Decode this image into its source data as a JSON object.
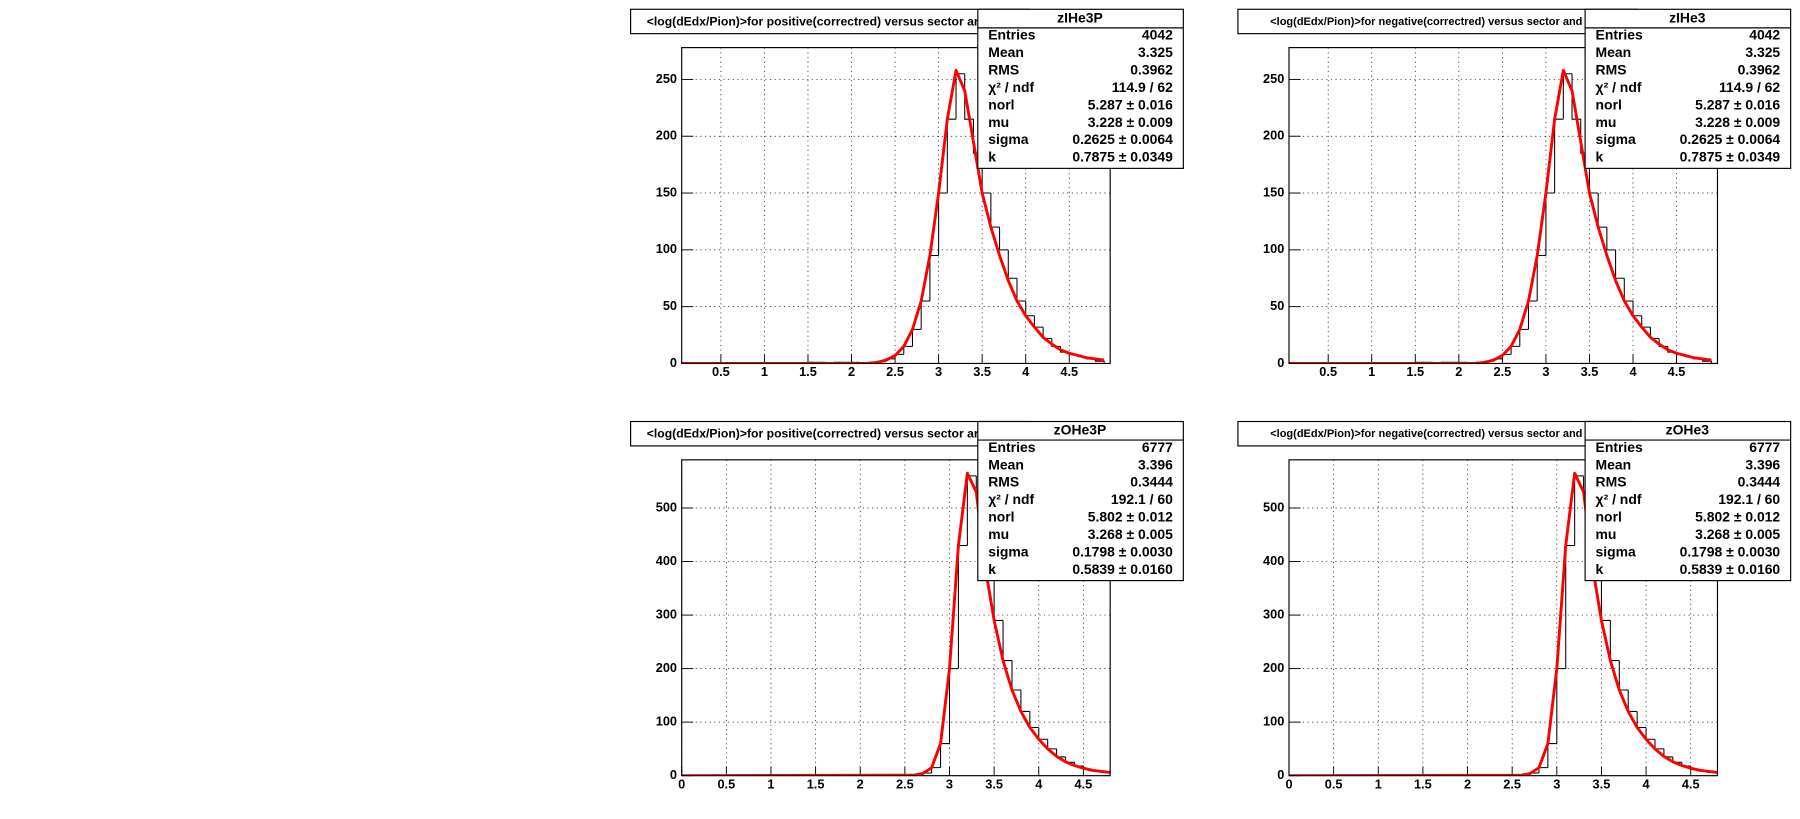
{
  "chart_data": [
    {
      "type": "histogram",
      "title": "<log(dEdx/Pion)>for positive(correctred) versus sector and row",
      "name": "zIHe3P",
      "stats": [
        [
          "Entries",
          "4042"
        ],
        [
          "Mean",
          "3.325"
        ],
        [
          "RMS",
          "0.3962"
        ],
        [
          "χ² / ndf",
          "114.9 / 62"
        ],
        [
          "norl",
          "5.287 ± 0.016"
        ],
        [
          "mu",
          "3.228 ± 0.009"
        ],
        [
          "sigma",
          "0.2625 ± 0.0064"
        ],
        [
          "k",
          "0.7875 ± 0.0349"
        ]
      ],
      "bins": [
        0,
        0.1,
        0.2,
        0.3,
        0.4,
        0.5,
        0.6,
        0.7,
        0.8,
        0.9,
        1,
        1.1,
        1.2,
        1.3,
        1.4,
        1.5,
        1.6,
        1.7,
        1.8,
        1.9,
        2,
        2.1,
        2.2,
        2.3,
        2.4,
        2.5,
        2.6,
        2.7,
        2.8,
        2.9,
        3,
        3.1,
        3.2,
        3.3,
        3.4,
        3.5,
        3.6,
        3.7,
        3.8,
        3.9,
        4,
        4.1,
        4.2,
        4.3,
        4.4,
        4.5,
        4.6,
        4.7,
        4.8,
        4.9
      ],
      "counts": [
        0,
        0,
        0,
        0,
        0,
        0,
        0,
        0,
        0,
        0,
        0,
        0,
        0,
        0,
        0,
        1,
        1,
        0,
        1,
        1,
        1,
        0,
        1,
        2,
        4,
        8,
        15,
        30,
        55,
        95,
        150,
        215,
        255,
        215,
        185,
        150,
        120,
        100,
        75,
        55,
        42,
        32,
        22,
        15,
        10,
        8,
        6,
        4,
        2
      ],
      "fit": {
        "color": "#ff0000",
        "x": [
          0.05,
          2.2,
          2.3,
          2.4,
          2.5,
          2.6,
          2.7,
          2.8,
          2.9,
          3,
          3.1,
          3.2,
          3.3,
          3.4,
          3.5,
          3.6,
          3.7,
          3.8,
          3.9,
          4,
          4.1,
          4.2,
          4.3,
          4.4,
          4.5,
          4.6,
          4.7,
          4.8,
          4.9
        ],
        "values": [
          0,
          0,
          1,
          3,
          7,
          15,
          30,
          55,
          95,
          150,
          215,
          258,
          240,
          195,
          150,
          120,
          95,
          73,
          55,
          42,
          32,
          23,
          17,
          12,
          9,
          7,
          5,
          4,
          3
        ]
      },
      "xlim": [
        0.05,
        4.97
      ],
      "ylim": [
        0,
        278
      ],
      "xticks": [
        0.5,
        1,
        1.5,
        2,
        2.5,
        3,
        3.5,
        4,
        4.5
      ],
      "yticks": [
        0,
        50,
        100,
        150,
        200,
        250
      ],
      "grid": true
    },
    {
      "type": "histogram",
      "title": "<log(dEdx/Pion)>for negative(correctred) versus sector and row",
      "name": "zIHe3",
      "stats": [
        [
          "Entries",
          "4042"
        ],
        [
          "Mean",
          "3.325"
        ],
        [
          "RMS",
          "0.3962"
        ],
        [
          "χ² / ndf",
          "114.9 / 62"
        ],
        [
          "norl",
          "5.287 ± 0.016"
        ],
        [
          "mu",
          "3.228 ± 0.009"
        ],
        [
          "sigma",
          "0.2625 ± 0.0064"
        ],
        [
          "k",
          "0.7875 ± 0.0349"
        ]
      ],
      "bins": [
        0,
        0.1,
        0.2,
        0.3,
        0.4,
        0.5,
        0.6,
        0.7,
        0.8,
        0.9,
        1,
        1.1,
        1.2,
        1.3,
        1.4,
        1.5,
        1.6,
        1.7,
        1.8,
        1.9,
        2,
        2.1,
        2.2,
        2.3,
        2.4,
        2.5,
        2.6,
        2.7,
        2.8,
        2.9,
        3,
        3.1,
        3.2,
        3.3,
        3.4,
        3.5,
        3.6,
        3.7,
        3.8,
        3.9,
        4,
        4.1,
        4.2,
        4.3,
        4.4,
        4.5,
        4.6,
        4.7,
        4.8,
        4.9
      ],
      "counts": [
        0,
        0,
        0,
        0,
        0,
        0,
        0,
        0,
        0,
        0,
        0,
        0,
        0,
        0,
        0,
        1,
        1,
        0,
        1,
        1,
        1,
        0,
        1,
        2,
        4,
        8,
        15,
        30,
        55,
        95,
        150,
        215,
        255,
        215,
        185,
        150,
        120,
        100,
        75,
        55,
        42,
        32,
        22,
        15,
        10,
        8,
        6,
        4,
        2
      ],
      "fit": {
        "color": "#ff0000",
        "x": [
          0.05,
          2.2,
          2.3,
          2.4,
          2.5,
          2.6,
          2.7,
          2.8,
          2.9,
          3,
          3.1,
          3.2,
          3.3,
          3.4,
          3.5,
          3.6,
          3.7,
          3.8,
          3.9,
          4,
          4.1,
          4.2,
          4.3,
          4.4,
          4.5,
          4.6,
          4.7,
          4.8,
          4.9
        ],
        "values": [
          0,
          0,
          1,
          3,
          7,
          15,
          30,
          55,
          95,
          150,
          215,
          258,
          240,
          195,
          150,
          120,
          95,
          73,
          55,
          42,
          32,
          23,
          17,
          12,
          9,
          7,
          5,
          4,
          3
        ]
      },
      "xlim": [
        0.05,
        4.97
      ],
      "ylim": [
        0,
        278
      ],
      "xticks": [
        0.5,
        1,
        1.5,
        2,
        2.5,
        3,
        3.5,
        4,
        4.5
      ],
      "yticks": [
        0,
        50,
        100,
        150,
        200,
        250
      ],
      "grid": true
    },
    {
      "type": "histogram",
      "title": "<log(dEdx/Pion)>for positive(correctred) versus sector and row",
      "name": "zOHe3P",
      "stats": [
        [
          "Entries",
          "6777"
        ],
        [
          "Mean",
          "3.396"
        ],
        [
          "RMS",
          "0.3444"
        ],
        [
          "χ² / ndf",
          "192.1 / 60"
        ],
        [
          "norl",
          "5.802 ± 0.012"
        ],
        [
          "mu",
          "3.268 ± 0.005"
        ],
        [
          "sigma",
          "0.1798 ± 0.0030"
        ],
        [
          "k",
          "0.5839 ± 0.0160"
        ]
      ],
      "bins": [
        0,
        0.1,
        0.2,
        0.3,
        0.4,
        0.5,
        0.6,
        0.7,
        0.8,
        0.9,
        1,
        1.1,
        1.2,
        1.3,
        1.4,
        1.5,
        1.6,
        1.7,
        1.8,
        1.9,
        2,
        2.1,
        2.2,
        2.3,
        2.4,
        2.5,
        2.6,
        2.7,
        2.8,
        2.9,
        3,
        3.1,
        3.2,
        3.3,
        3.4,
        3.5,
        3.6,
        3.7,
        3.8,
        3.9,
        4,
        4.1,
        4.2,
        4.3,
        4.4,
        4.5,
        4.6,
        4.7,
        4.8
      ],
      "counts": [
        0,
        0,
        0,
        0,
        0,
        0,
        0,
        0,
        0,
        0,
        0,
        0,
        0,
        0,
        0,
        0,
        0,
        0,
        0,
        1,
        0,
        0,
        1,
        0,
        1,
        1,
        2,
        5,
        15,
        60,
        200,
        430,
        560,
        520,
        390,
        290,
        215,
        160,
        120,
        90,
        68,
        50,
        35,
        25,
        18,
        12,
        9,
        6
      ],
      "fit": {
        "color": "#ff0000",
        "x": [
          0,
          2.6,
          2.7,
          2.8,
          2.9,
          3,
          3.1,
          3.2,
          3.3,
          3.4,
          3.5,
          3.6,
          3.7,
          3.8,
          3.9,
          4,
          4.1,
          4.2,
          4.3,
          4.4,
          4.5,
          4.6,
          4.7,
          4.8
        ],
        "values": [
          0,
          1,
          4,
          15,
          60,
          200,
          430,
          565,
          530,
          390,
          290,
          215,
          160,
          120,
          90,
          68,
          50,
          36,
          26,
          19,
          14,
          10,
          8,
          6
        ]
      },
      "xlim": [
        0,
        4.8
      ],
      "ylim": [
        0,
        590
      ],
      "xticks": [
        0,
        0.5,
        1,
        1.5,
        2,
        2.5,
        3,
        3.5,
        4,
        4.5
      ],
      "yticks": [
        0,
        100,
        200,
        300,
        400,
        500
      ],
      "grid": true
    },
    {
      "type": "histogram",
      "title": "<log(dEdx/Pion)>for negative(correctred) versus sector and row",
      "name": "zOHe3",
      "stats": [
        [
          "Entries",
          "6777"
        ],
        [
          "Mean",
          "3.396"
        ],
        [
          "RMS",
          "0.3444"
        ],
        [
          "χ² / ndf",
          "192.1 / 60"
        ],
        [
          "norl",
          "5.802 ± 0.012"
        ],
        [
          "mu",
          "3.268 ± 0.005"
        ],
        [
          "sigma",
          "0.1798 ± 0.0030"
        ],
        [
          "k",
          "0.5839 ± 0.0160"
        ]
      ],
      "bins": [
        0,
        0.1,
        0.2,
        0.3,
        0.4,
        0.5,
        0.6,
        0.7,
        0.8,
        0.9,
        1,
        1.1,
        1.2,
        1.3,
        1.4,
        1.5,
        1.6,
        1.7,
        1.8,
        1.9,
        2,
        2.1,
        2.2,
        2.3,
        2.4,
        2.5,
        2.6,
        2.7,
        2.8,
        2.9,
        3,
        3.1,
        3.2,
        3.3,
        3.4,
        3.5,
        3.6,
        3.7,
        3.8,
        3.9,
        4,
        4.1,
        4.2,
        4.3,
        4.4,
        4.5,
        4.6,
        4.7,
        4.8
      ],
      "counts": [
        0,
        0,
        0,
        0,
        0,
        0,
        0,
        0,
        0,
        0,
        0,
        0,
        0,
        0,
        0,
        0,
        0,
        0,
        0,
        1,
        0,
        0,
        1,
        0,
        1,
        1,
        2,
        5,
        15,
        60,
        200,
        430,
        560,
        520,
        390,
        290,
        215,
        160,
        120,
        90,
        68,
        50,
        35,
        25,
        18,
        12,
        9,
        6
      ],
      "fit": {
        "color": "#ff0000",
        "x": [
          0,
          2.6,
          2.7,
          2.8,
          2.9,
          3,
          3.1,
          3.2,
          3.3,
          3.4,
          3.5,
          3.6,
          3.7,
          3.8,
          3.9,
          4,
          4.1,
          4.2,
          4.3,
          4.4,
          4.5,
          4.6,
          4.7,
          4.8
        ],
        "values": [
          0,
          1,
          4,
          15,
          60,
          200,
          430,
          565,
          530,
          390,
          290,
          215,
          160,
          120,
          90,
          68,
          50,
          36,
          26,
          19,
          14,
          10,
          8,
          6
        ]
      },
      "xlim": [
        0,
        4.8
      ],
      "ylim": [
        0,
        590
      ],
      "xticks": [
        0,
        0.5,
        1,
        1.5,
        2,
        2.5,
        3,
        3.5,
        4,
        4.5
      ],
      "yticks": [
        0,
        100,
        200,
        300,
        400,
        500
      ],
      "grid": true
    }
  ]
}
